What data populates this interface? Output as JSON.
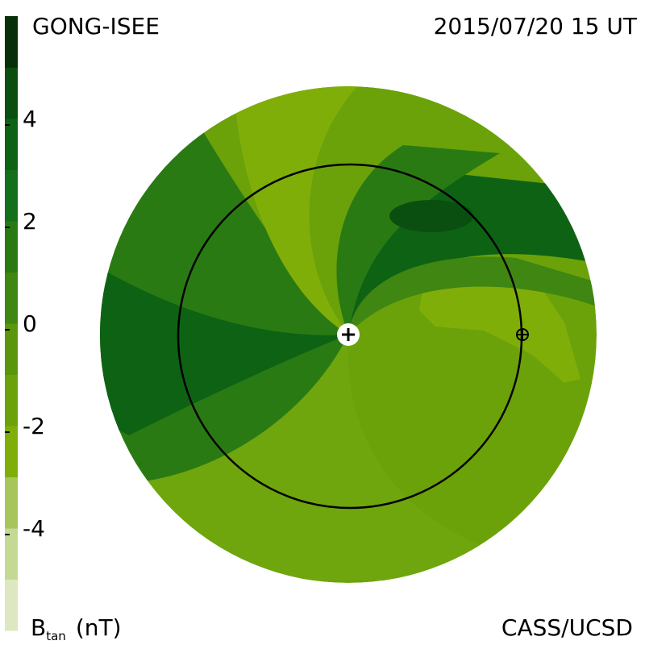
{
  "chart_data": {
    "type": "contour",
    "title": "GONG-ISEE",
    "subtitle": "2015/07/20 15 UT",
    "credit": "CASS/UCSD",
    "colorbar": {
      "label": "B",
      "label_sub": "tan",
      "unit": "(nT)",
      "clim": [
        -6,
        6
      ],
      "ticks": [
        4,
        2,
        0,
        -2,
        -4
      ],
      "colors": [
        "#dde8c0",
        "#c4da94",
        "#a6c65c",
        "#80ae08",
        "#6ba20a",
        "#5a960c",
        "#3f8612",
        "#2a7a14",
        "#14701a",
        "#0e6214",
        "#0b4f10",
        "#072f08"
      ]
    }
  }
}
